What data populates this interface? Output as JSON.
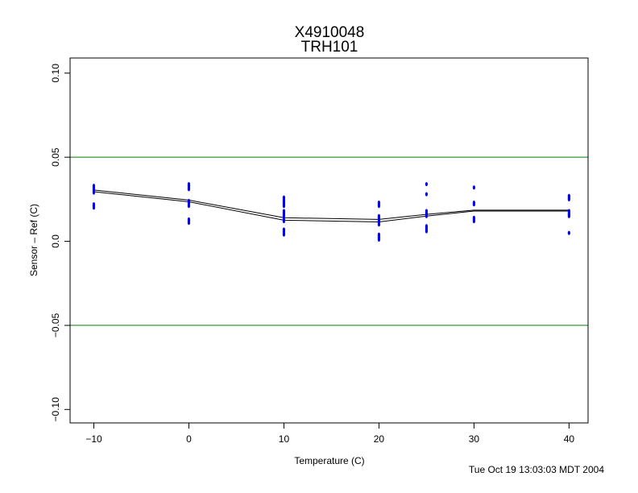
{
  "chart_data": {
    "type": "scatter",
    "title": "X4910048",
    "subtitle": "TRH101",
    "xlabel": "Temperature (C)",
    "ylabel": "Sensor – Ref (C)",
    "xlim": [
      -12.5,
      42
    ],
    "ylim": [
      -0.108,
      0.109
    ],
    "x_ticks": [
      -10,
      0,
      10,
      20,
      30,
      40
    ],
    "x_tick_labels": [
      "−10",
      "0",
      "10",
      "20",
      "30",
      "40"
    ],
    "y_ticks": [
      -0.1,
      -0.05,
      0.0,
      0.05,
      0.1
    ],
    "y_tick_labels": [
      "−0.10",
      "−0.05",
      "0.0",
      "0.05",
      "0.10"
    ],
    "reference_lines": [
      0.05,
      -0.05
    ],
    "reference_line_color": "#008000",
    "point_color": "#0000ff",
    "points": [
      {
        "x": -10,
        "y": 0.033
      },
      {
        "x": -10,
        "y": 0.032
      },
      {
        "x": -10,
        "y": 0.031
      },
      {
        "x": -10,
        "y": 0.03
      },
      {
        "x": -10,
        "y": 0.029
      },
      {
        "x": -10,
        "y": 0.022
      },
      {
        "x": -10,
        "y": 0.021
      },
      {
        "x": -10,
        "y": 0.02
      },
      {
        "x": 0,
        "y": 0.034
      },
      {
        "x": 0,
        "y": 0.033
      },
      {
        "x": 0,
        "y": 0.032
      },
      {
        "x": 0,
        "y": 0.031
      },
      {
        "x": 0,
        "y": 0.024
      },
      {
        "x": 0,
        "y": 0.023
      },
      {
        "x": 0,
        "y": 0.022
      },
      {
        "x": 0,
        "y": 0.021
      },
      {
        "x": 0,
        "y": 0.013
      },
      {
        "x": 0,
        "y": 0.012
      },
      {
        "x": 0,
        "y": 0.011
      },
      {
        "x": 10,
        "y": 0.026
      },
      {
        "x": 10,
        "y": 0.025
      },
      {
        "x": 10,
        "y": 0.024
      },
      {
        "x": 10,
        "y": 0.023
      },
      {
        "x": 10,
        "y": 0.022
      },
      {
        "x": 10,
        "y": 0.021
      },
      {
        "x": 10,
        "y": 0.018
      },
      {
        "x": 10,
        "y": 0.017
      },
      {
        "x": 10,
        "y": 0.016
      },
      {
        "x": 10,
        "y": 0.015
      },
      {
        "x": 10,
        "y": 0.014
      },
      {
        "x": 10,
        "y": 0.013
      },
      {
        "x": 10,
        "y": 0.012
      },
      {
        "x": 10,
        "y": 0.007
      },
      {
        "x": 10,
        "y": 0.006
      },
      {
        "x": 10,
        "y": 0.005
      },
      {
        "x": 10,
        "y": 0.004
      },
      {
        "x": 20,
        "y": 0.023
      },
      {
        "x": 20,
        "y": 0.022
      },
      {
        "x": 20,
        "y": 0.021
      },
      {
        "x": 20,
        "y": 0.015
      },
      {
        "x": 20,
        "y": 0.014
      },
      {
        "x": 20,
        "y": 0.013
      },
      {
        "x": 20,
        "y": 0.012
      },
      {
        "x": 20,
        "y": 0.011
      },
      {
        "x": 20,
        "y": 0.01
      },
      {
        "x": 20,
        "y": 0.004
      },
      {
        "x": 20,
        "y": 0.003
      },
      {
        "x": 20,
        "y": 0.002
      },
      {
        "x": 20,
        "y": 0.001
      },
      {
        "x": 25,
        "y": 0.034
      },
      {
        "x": 25,
        "y": 0.028
      },
      {
        "x": 25,
        "y": 0.018
      },
      {
        "x": 25,
        "y": 0.017
      },
      {
        "x": 25,
        "y": 0.016
      },
      {
        "x": 25,
        "y": 0.015
      },
      {
        "x": 25,
        "y": 0.009
      },
      {
        "x": 25,
        "y": 0.008
      },
      {
        "x": 25,
        "y": 0.007
      },
      {
        "x": 25,
        "y": 0.006
      },
      {
        "x": 30,
        "y": 0.032
      },
      {
        "x": 30,
        "y": 0.023
      },
      {
        "x": 30,
        "y": 0.022
      },
      {
        "x": 30,
        "y": 0.014
      },
      {
        "x": 30,
        "y": 0.013
      },
      {
        "x": 30,
        "y": 0.012
      },
      {
        "x": 40,
        "y": 0.027
      },
      {
        "x": 40,
        "y": 0.026
      },
      {
        "x": 40,
        "y": 0.025
      },
      {
        "x": 40,
        "y": 0.018
      },
      {
        "x": 40,
        "y": 0.017
      },
      {
        "x": 40,
        "y": 0.016
      },
      {
        "x": 40,
        "y": 0.015
      },
      {
        "x": 40,
        "y": 0.005
      }
    ],
    "series": [
      {
        "x": [
          -10,
          0,
          10,
          20,
          25,
          30,
          40
        ],
        "y": [
          0.0305,
          0.0245,
          0.014,
          0.013,
          0.016,
          0.0185,
          0.0185
        ],
        "color": "#000000"
      },
      {
        "x": [
          -10,
          0,
          10,
          20,
          25,
          30,
          40
        ],
        "y": [
          0.0295,
          0.0235,
          0.0125,
          0.0115,
          0.015,
          0.018,
          0.018
        ],
        "color": "#000000"
      }
    ],
    "grid": false,
    "footer": "Tue Oct 19 13:03:03 MDT 2004"
  }
}
